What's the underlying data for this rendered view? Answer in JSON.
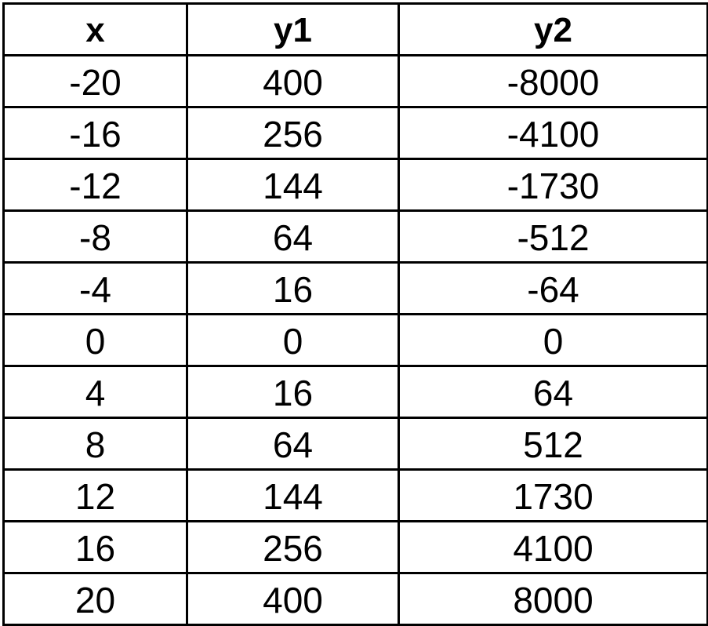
{
  "chart_data": {
    "type": "table",
    "columns": [
      "x",
      "y1",
      "y2"
    ],
    "rows": [
      [
        "-20",
        "400",
        "-8000"
      ],
      [
        "-16",
        "256",
        "-4100"
      ],
      [
        "-12",
        "144",
        "-1730"
      ],
      [
        "-8",
        "64",
        "-512"
      ],
      [
        "-4",
        "16",
        "-64"
      ],
      [
        "0",
        "0",
        "0"
      ],
      [
        "4",
        "16",
        "64"
      ],
      [
        "8",
        "64",
        "512"
      ],
      [
        "12",
        "144",
        "1730"
      ],
      [
        "16",
        "256",
        "4100"
      ],
      [
        "20",
        "400",
        "8000"
      ]
    ]
  }
}
